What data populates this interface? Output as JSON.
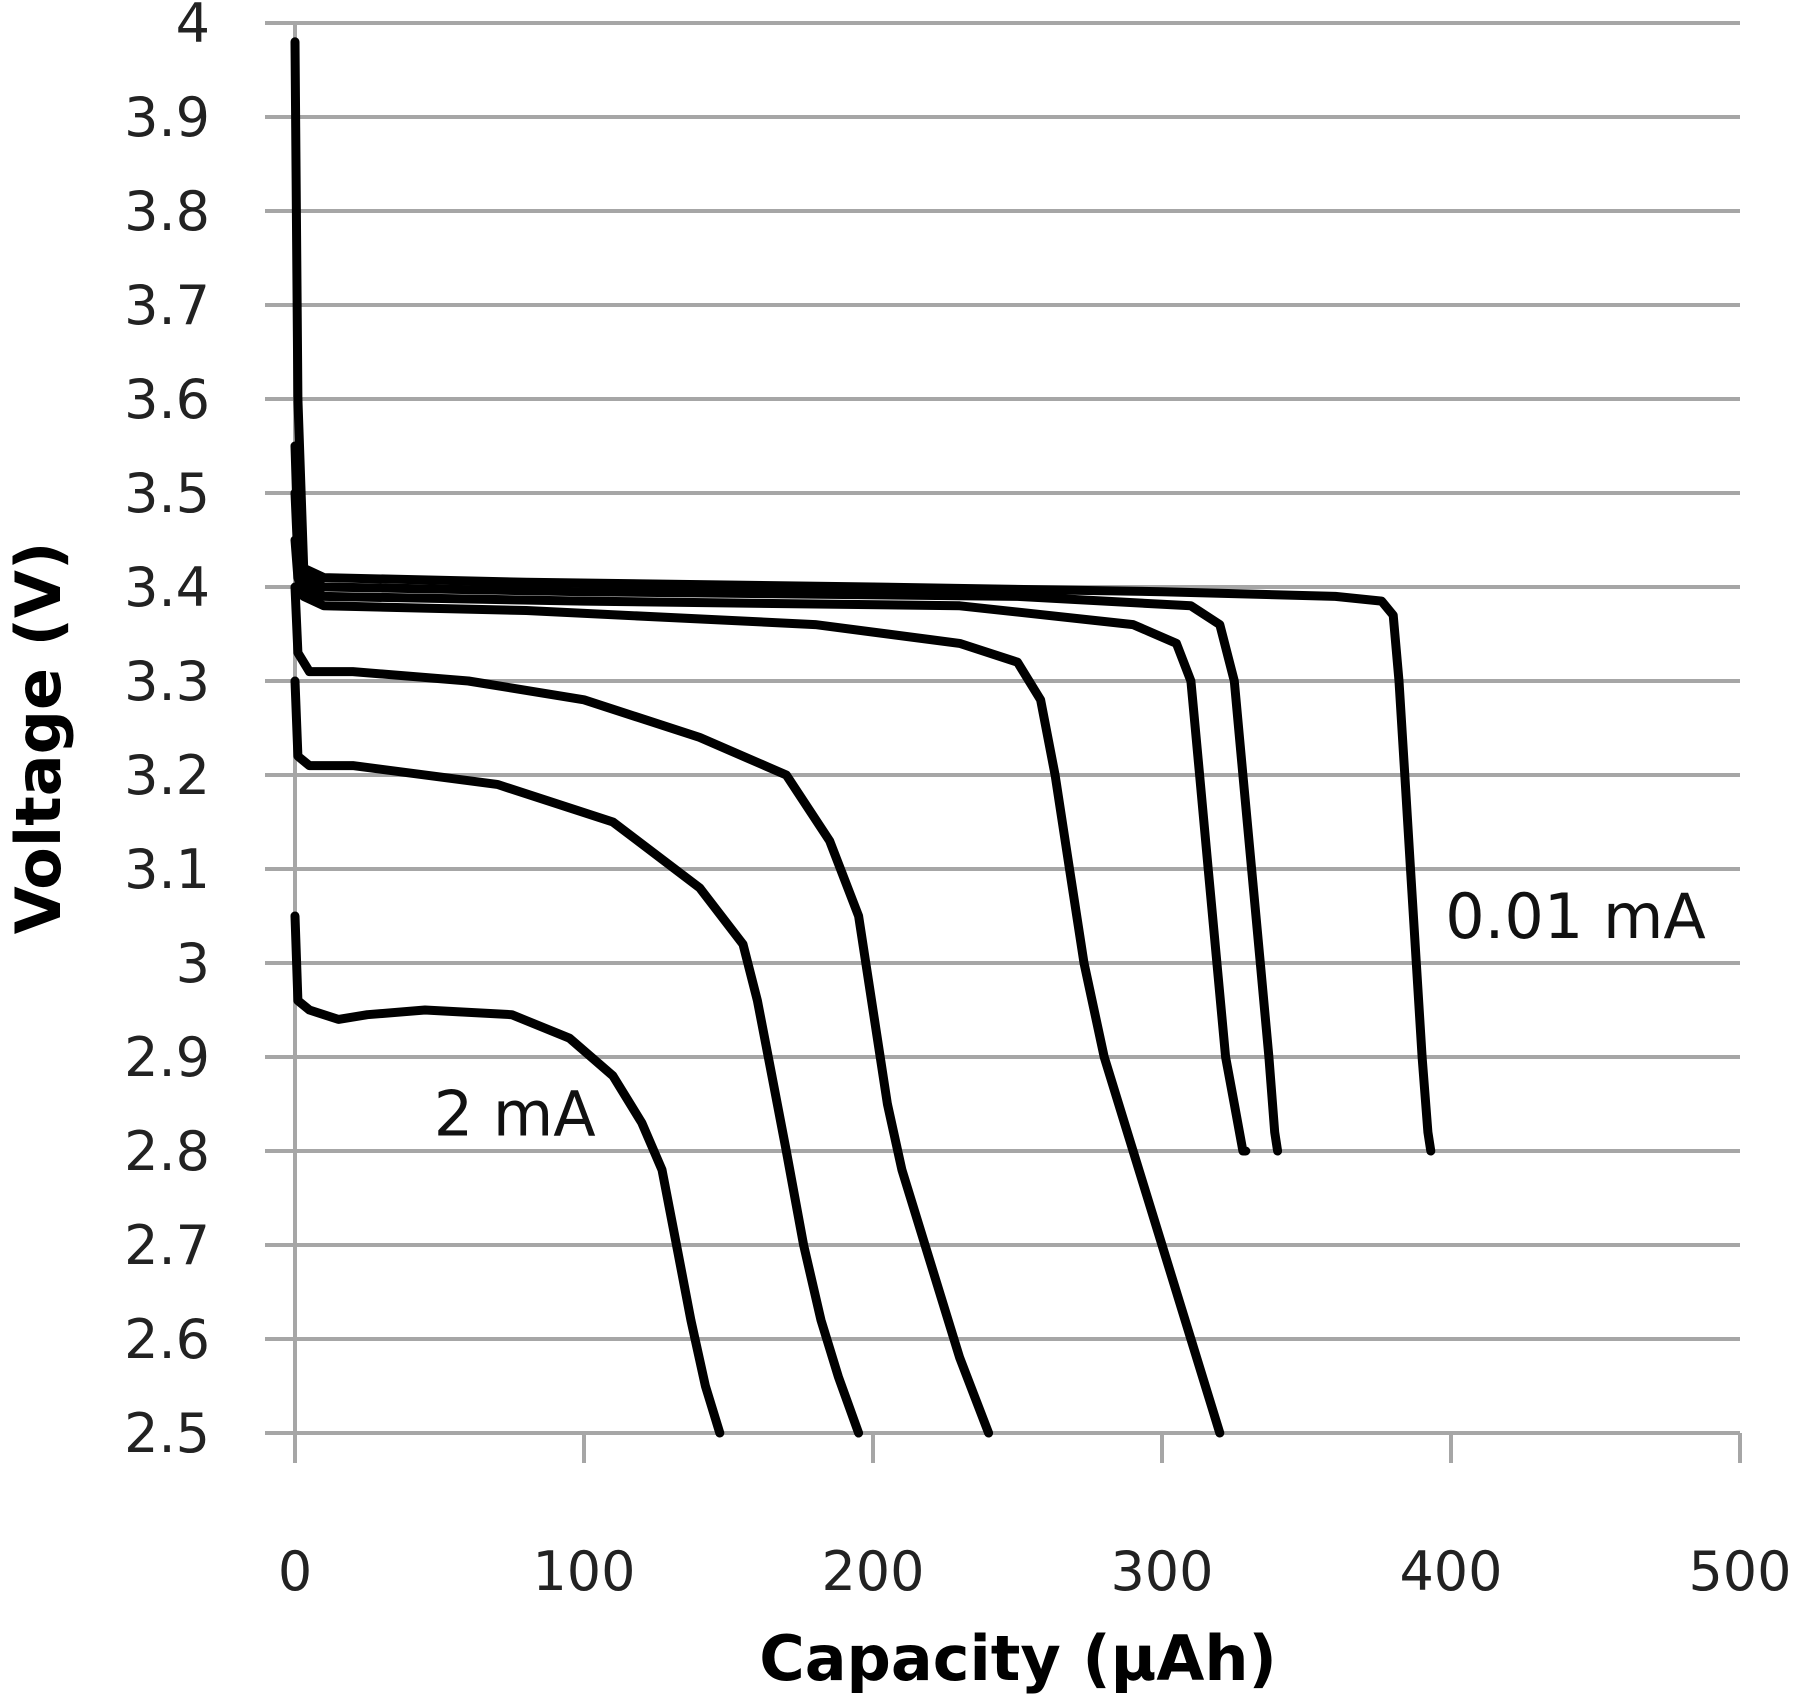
{
  "chart_data": {
    "type": "line",
    "title": "",
    "xlabel": "Capacity (µAh)",
    "ylabel": "Voltage (V)",
    "xlim": [
      0,
      500
    ],
    "ylim": [
      2.5,
      4
    ],
    "x_ticks": [
      "0",
      "100",
      "200",
      "300",
      "400",
      "500"
    ],
    "y_ticks": [
      "2.5",
      "2.6",
      "2.7",
      "2.8",
      "2.9",
      "3",
      "3.1",
      "3.2",
      "3.3",
      "3.4",
      "3.5",
      "3.6",
      "3.7",
      "3.8",
      "3.9",
      "4"
    ],
    "grid": {
      "horizontal": true,
      "vertical": false
    },
    "colors": {
      "series": "#000000",
      "grid": "#a6a6a6"
    },
    "annotations": [
      {
        "text": "0.01 mA",
        "x": 398,
        "y": 3.05
      },
      {
        "text": "2 mA",
        "x": 48,
        "y": 2.84
      }
    ],
    "series": [
      {
        "x": [
          0,
          1,
          3,
          10,
          80,
          200,
          300,
          360,
          376,
          380,
          382,
          384,
          386,
          388,
          390,
          392,
          393
        ],
        "y": [
          3.98,
          3.6,
          3.42,
          3.41,
          3.405,
          3.4,
          3.395,
          3.39,
          3.385,
          3.37,
          3.3,
          3.2,
          3.1,
          3.0,
          2.9,
          2.82,
          2.8
        ]
      },
      {
        "x": [
          0,
          1,
          3,
          10,
          100,
          250,
          310,
          320,
          325,
          328,
          331,
          334,
          337,
          339,
          340
        ],
        "y": [
          3.55,
          3.45,
          3.41,
          3.4,
          3.395,
          3.39,
          3.38,
          3.36,
          3.3,
          3.2,
          3.1,
          3.0,
          2.9,
          2.82,
          2.8
        ]
      },
      {
        "x": [
          0,
          1,
          3,
          10,
          100,
          230,
          290,
          305,
          310,
          313,
          316,
          319,
          322,
          325,
          328,
          329
        ],
        "y": [
          3.5,
          3.43,
          3.4,
          3.39,
          3.385,
          3.38,
          3.36,
          3.34,
          3.3,
          3.2,
          3.1,
          3.0,
          2.9,
          2.85,
          2.8,
          2.8
        ]
      },
      {
        "x": [
          0,
          1,
          3,
          10,
          80,
          180,
          230,
          250,
          258,
          263,
          268,
          273,
          280,
          290,
          300,
          310,
          320
        ],
        "y": [
          3.45,
          3.41,
          3.39,
          3.38,
          3.375,
          3.36,
          3.34,
          3.32,
          3.28,
          3.2,
          3.1,
          3.0,
          2.9,
          2.8,
          2.7,
          2.6,
          2.5
        ]
      },
      {
        "x": [
          0,
          1,
          5,
          20,
          60,
          100,
          140,
          170,
          185,
          195,
          200,
          205,
          210,
          220,
          230,
          240
        ],
        "y": [
          3.4,
          3.33,
          3.31,
          3.31,
          3.3,
          3.28,
          3.24,
          3.2,
          3.13,
          3.05,
          2.95,
          2.85,
          2.78,
          2.68,
          2.58,
          2.5
        ]
      },
      {
        "x": [
          0,
          1,
          5,
          20,
          70,
          110,
          140,
          155,
          160,
          165,
          170,
          176,
          182,
          188,
          195
        ],
        "y": [
          3.3,
          3.22,
          3.21,
          3.21,
          3.19,
          3.15,
          3.08,
          3.02,
          2.96,
          2.88,
          2.8,
          2.7,
          2.62,
          2.56,
          2.5
        ]
      },
      {
        "x": [
          0,
          1,
          5,
          15,
          25,
          45,
          75,
          95,
          110,
          120,
          127,
          132,
          137,
          142,
          147
        ],
        "y": [
          3.05,
          2.96,
          2.95,
          2.94,
          2.945,
          2.95,
          2.945,
          2.92,
          2.88,
          2.83,
          2.78,
          2.7,
          2.62,
          2.55,
          2.5
        ]
      }
    ]
  }
}
